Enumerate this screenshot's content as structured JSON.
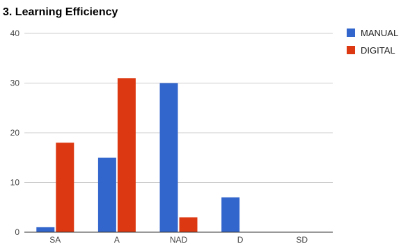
{
  "chart_data": {
    "type": "bar",
    "title": "3. Learning Efficiency",
    "xlabel": "",
    "ylabel": "",
    "categories": [
      "SA",
      "A",
      "NAD",
      "D",
      "SD"
    ],
    "series": [
      {
        "name": "MANUAL",
        "color": "#3366cc",
        "values": [
          1,
          15,
          30,
          7,
          0
        ]
      },
      {
        "name": "DIGITAL",
        "color": "#dc3912",
        "values": [
          18,
          31,
          3,
          0,
          0
        ]
      }
    ],
    "ylim": [
      0,
      40
    ],
    "yticks": [
      0,
      10,
      20,
      30,
      40
    ],
    "grid": true,
    "legend_position": "top-right"
  }
}
